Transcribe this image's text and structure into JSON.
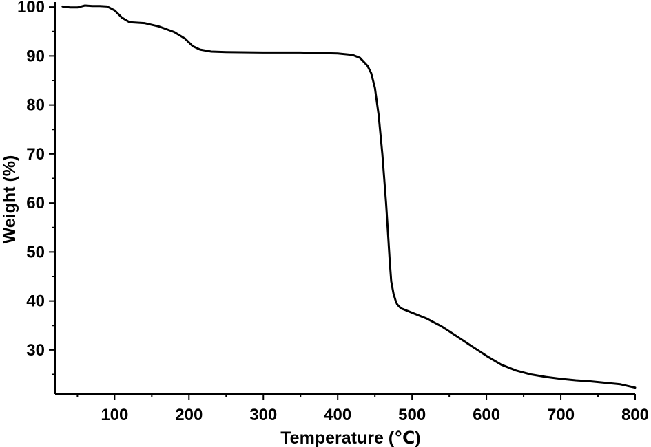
{
  "chart_data": {
    "type": "line",
    "title": "",
    "xlabel": "Temperature (℃)",
    "ylabel": "Weight (%)",
    "xlim": [
      20,
      800
    ],
    "ylim": [
      21,
      101
    ],
    "x_ticks": [
      100,
      200,
      300,
      400,
      500,
      600,
      700,
      800
    ],
    "x_tick_labels": [
      "100",
      "200",
      "300",
      "400",
      "500",
      "600",
      "700",
      "800"
    ],
    "y_ticks": [
      30,
      40,
      50,
      60,
      70,
      80,
      90,
      100
    ],
    "y_tick_labels": [
      "30",
      "40",
      "50",
      "60",
      "70",
      "80",
      "90",
      "100"
    ],
    "grid": false,
    "legend": "none",
    "colors": {
      "line": "#000000",
      "axis": "#000000",
      "background": "#ffffff"
    },
    "series": [
      {
        "x": [
          30,
          40,
          50,
          60,
          70,
          80,
          90,
          100,
          110,
          120,
          140,
          160,
          180,
          195,
          205,
          215,
          230,
          250,
          300,
          350,
          400,
          420,
          430,
          440,
          445,
          450,
          455,
          460,
          465,
          468,
          470,
          472,
          475,
          478,
          480,
          485,
          490,
          500,
          520,
          540,
          560,
          580,
          600,
          620,
          640,
          660,
          680,
          700,
          720,
          740,
          760,
          780,
          800
        ],
        "y": [
          100.1,
          99.9,
          99.9,
          100.3,
          100.2,
          100.2,
          100.1,
          99.3,
          97.8,
          96.9,
          96.7,
          96.0,
          94.9,
          93.5,
          92.0,
          91.3,
          90.9,
          90.8,
          90.7,
          90.7,
          90.5,
          90.2,
          89.6,
          88.0,
          86.5,
          83.5,
          78.0,
          70.0,
          60.0,
          53.0,
          48.0,
          44.0,
          41.5,
          40.0,
          39.3,
          38.5,
          38.2,
          37.6,
          36.4,
          34.8,
          32.8,
          30.8,
          28.8,
          27.0,
          25.8,
          25.0,
          24.5,
          24.1,
          23.8,
          23.6,
          23.3,
          23.0,
          22.3
        ]
      }
    ]
  }
}
